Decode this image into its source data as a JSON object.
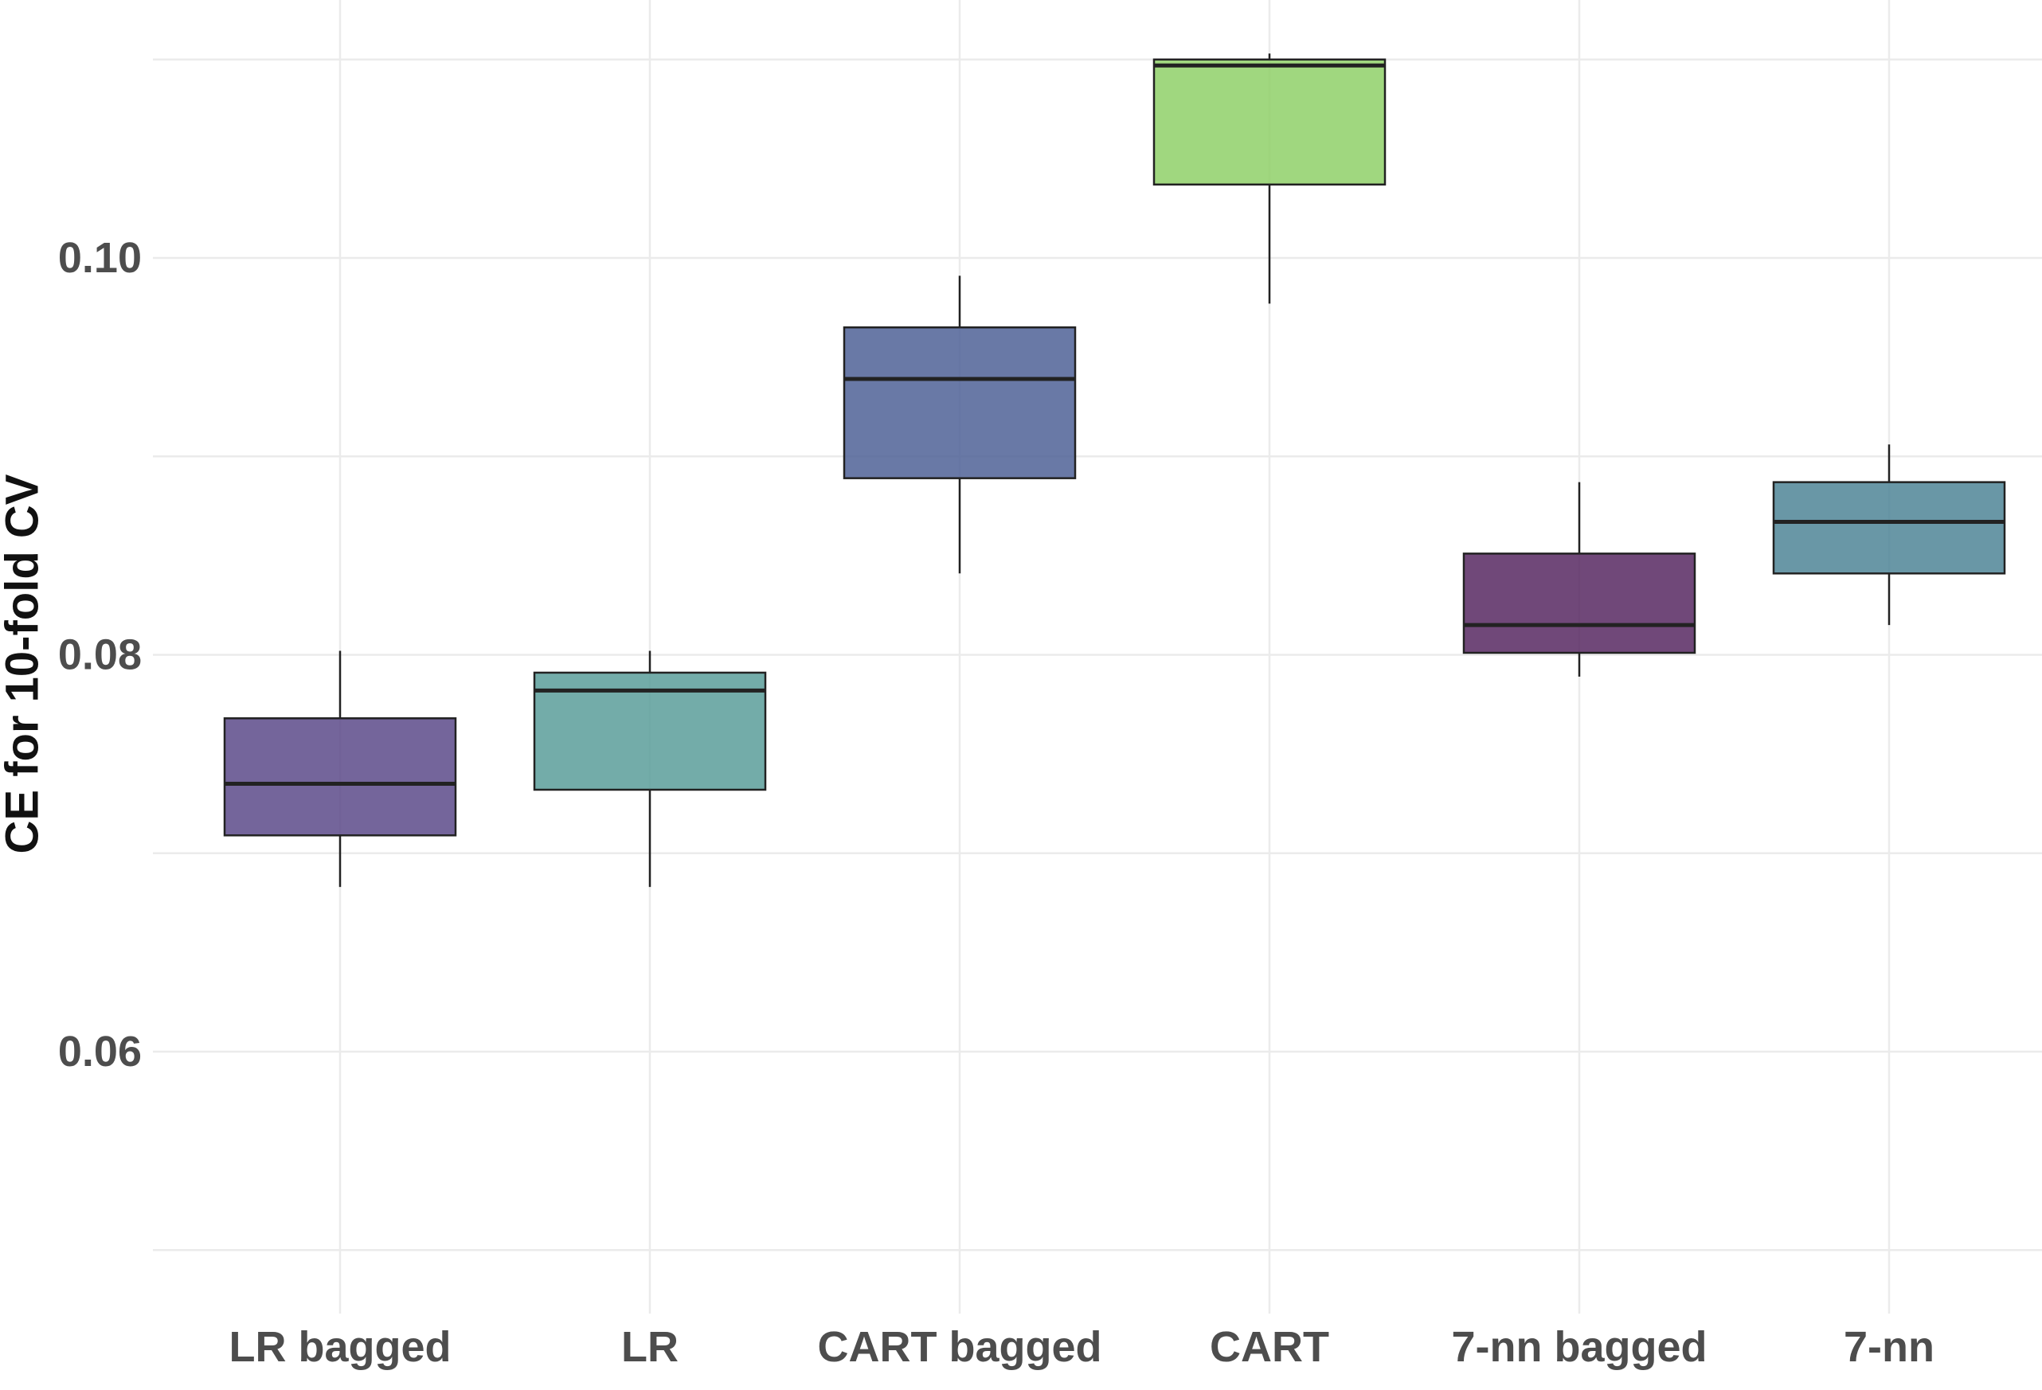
{
  "chart_data": {
    "type": "boxplot",
    "title": "",
    "xlabel": "",
    "ylabel": "CE for 10-fold CV",
    "ylim": [
      0.05,
      0.1103
    ],
    "yticks": [
      0.06,
      0.08,
      0.1
    ],
    "ytick_labels": [
      "0.06",
      "0.08",
      "0.10"
    ],
    "minor_gridlines": [
      0.05,
      0.07,
      0.09,
      0.11
    ],
    "grid": true,
    "legend": "none",
    "categories": [
      "LR bagged",
      "LR",
      "CART bagged",
      "CART",
      "7-nn bagged",
      "7-nn"
    ],
    "boxes": [
      {
        "category": "LR bagged",
        "whisker_low": 0.0683,
        "q1": 0.0709,
        "median": 0.0735,
        "q3": 0.0768,
        "whisker_high": 0.0802,
        "color": "#5c4a8a"
      },
      {
        "category": "LR",
        "whisker_low": 0.0683,
        "q1": 0.0732,
        "median": 0.0782,
        "q3": 0.0791,
        "whisker_high": 0.0802,
        "color": "#5a9e9a"
      },
      {
        "category": "CART bagged",
        "whisker_low": 0.0841,
        "q1": 0.0889,
        "median": 0.0939,
        "q3": 0.0965,
        "whisker_high": 0.0991,
        "color": "#4f6196"
      },
      {
        "category": "CART",
        "whisker_low": 0.0977,
        "q1": 0.1037,
        "median": 0.1097,
        "q3": 0.11,
        "whisker_high": 0.1103,
        "color": "#8fd069"
      },
      {
        "category": "7-nn bagged",
        "whisker_low": 0.0789,
        "q1": 0.0801,
        "median": 0.0815,
        "q3": 0.0851,
        "whisker_high": 0.0887,
        "color": "#572862"
      },
      {
        "category": "7-nn",
        "whisker_low": 0.0815,
        "q1": 0.0841,
        "median": 0.0867,
        "q3": 0.0887,
        "whisker_high": 0.0906,
        "color": "#4f8597"
      }
    ]
  }
}
